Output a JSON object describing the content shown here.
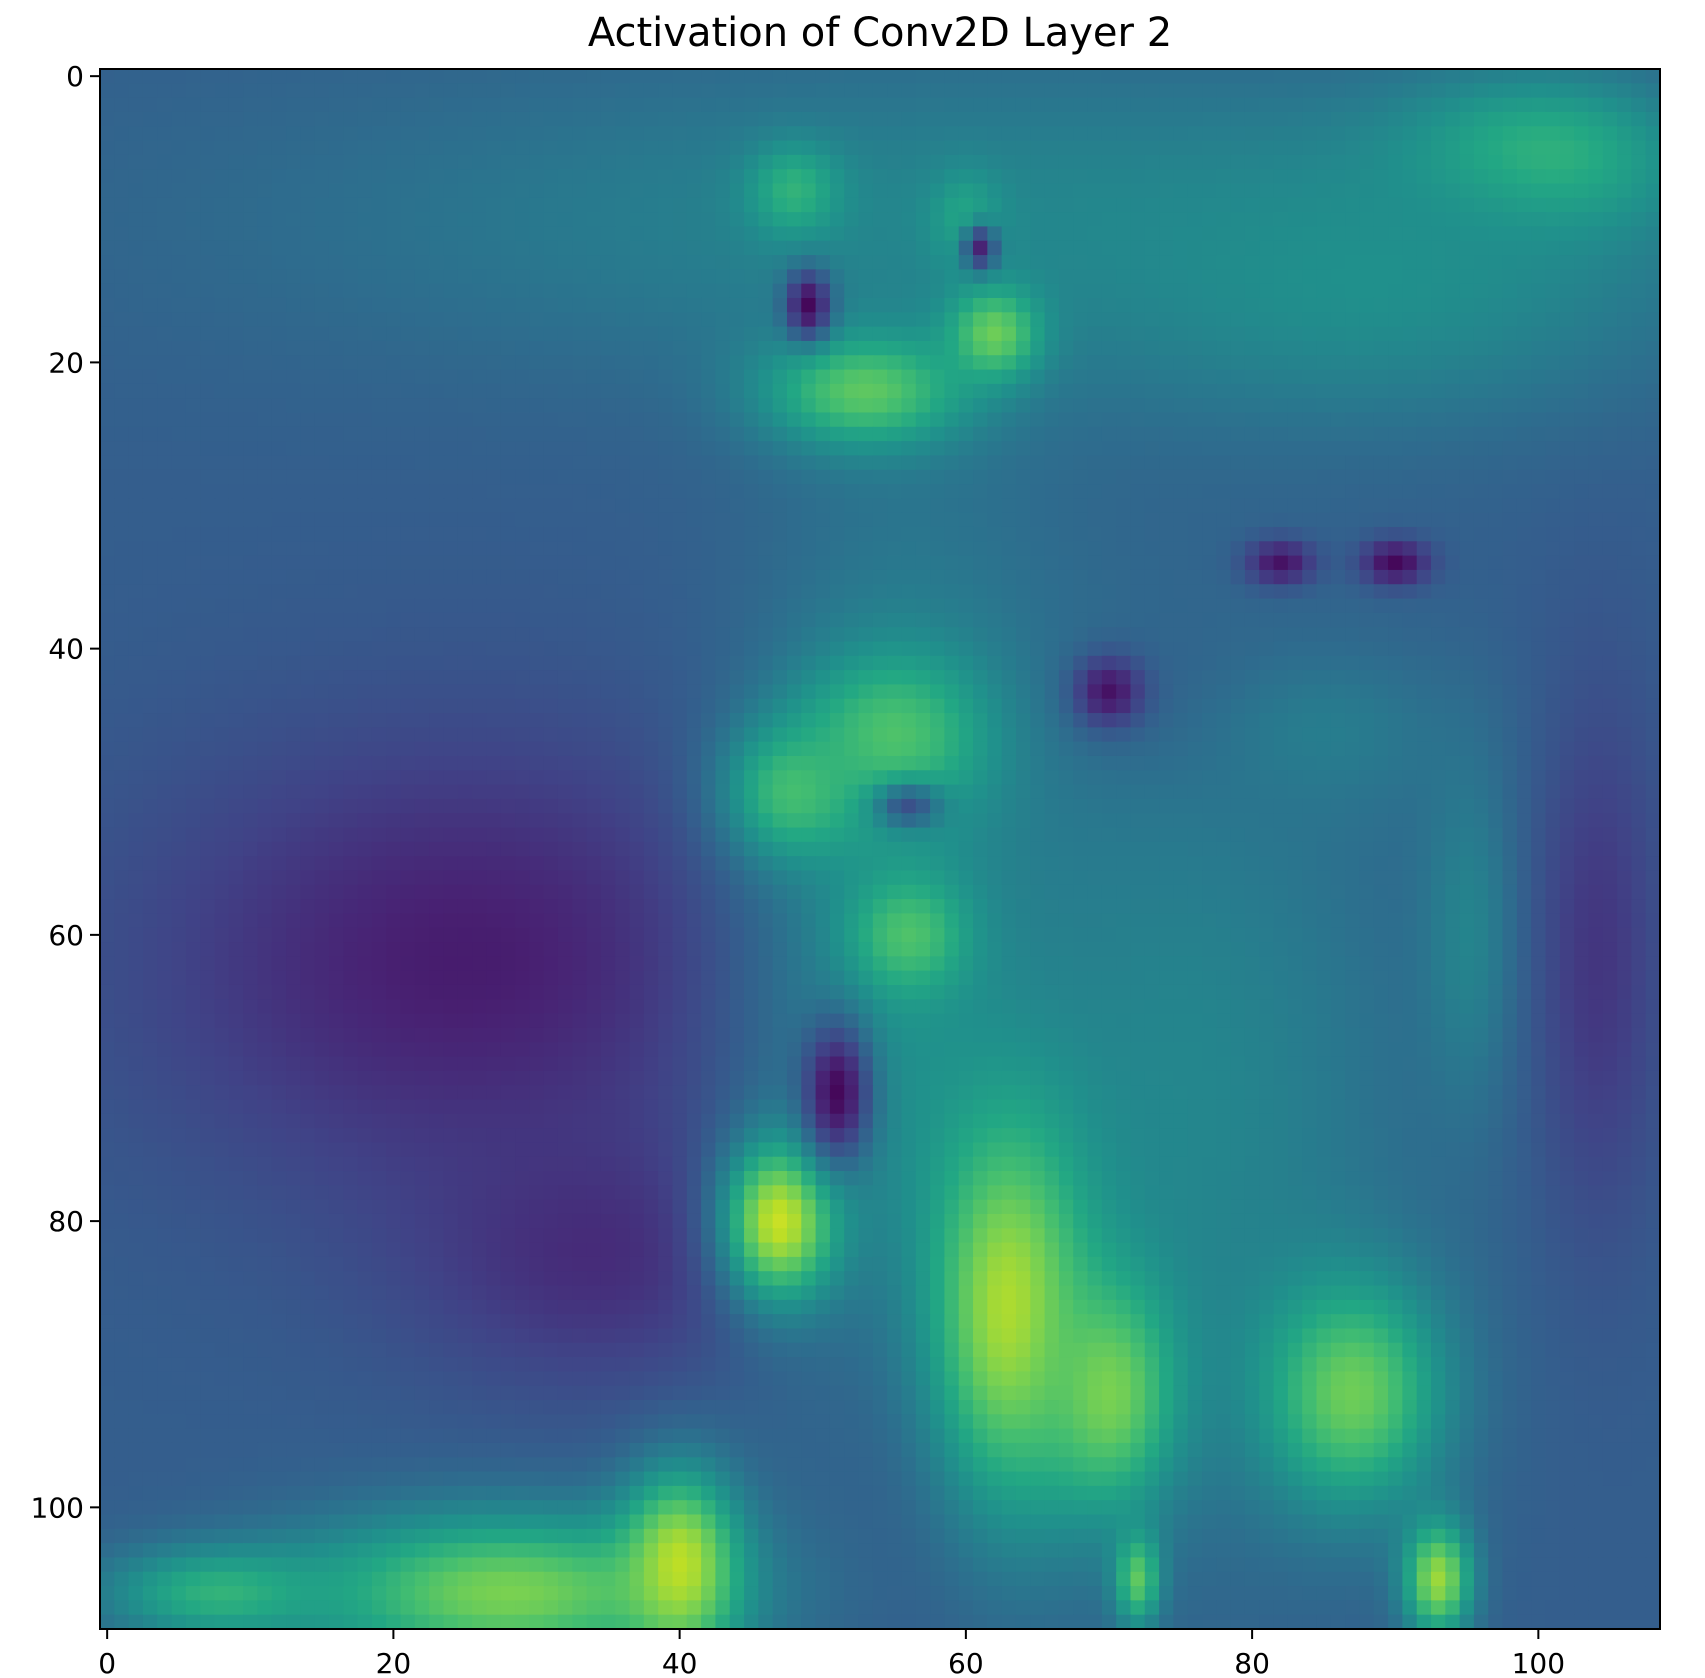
{
  "chart_data": {
    "type": "heatmap",
    "title": "Activation of Conv2D Layer 2",
    "xlabel": "",
    "ylabel": "",
    "colormap": "viridis",
    "grid": false,
    "legend": "none",
    "image_shape": [
      109,
      109
    ],
    "xlim": [
      -0.5,
      108.5
    ],
    "ylim": [
      108.5,
      -0.5
    ],
    "x_ticks": [
      0,
      20,
      40,
      60,
      80,
      100
    ],
    "y_ticks": [
      0,
      20,
      40,
      60,
      80,
      100
    ],
    "x_tick_labels": [
      "0",
      "20",
      "40",
      "60",
      "80",
      "100"
    ],
    "y_tick_labels": [
      "0",
      "20",
      "40",
      "60",
      "80",
      "100"
    ],
    "value_range": [
      0,
      1
    ],
    "background_value": 0.3,
    "features": [
      {
        "shape": "ellipse",
        "cx": 60,
        "cy": 10,
        "rx": 60,
        "ry": 14,
        "value": 0.45
      },
      {
        "shape": "ellipse",
        "cx": 100,
        "cy": 6,
        "rx": 12,
        "ry": 7,
        "value": 0.7
      },
      {
        "shape": "ellipse",
        "cx": 88,
        "cy": 14,
        "rx": 25,
        "ry": 12,
        "value": 0.5
      },
      {
        "shape": "ellipse",
        "cx": 25,
        "cy": 62,
        "rx": 28,
        "ry": 20,
        "value": 0.08
      },
      {
        "shape": "ellipse",
        "cx": 35,
        "cy": 82,
        "rx": 18,
        "ry": 12,
        "value": 0.12
      },
      {
        "shape": "ellipse",
        "cx": 104,
        "cy": 62,
        "rx": 6,
        "ry": 24,
        "value": 0.15
      },
      {
        "shape": "ellipse",
        "cx": 57,
        "cy": 80,
        "rx": 9,
        "ry": 30,
        "value": 0.12
      },
      {
        "shape": "ellipse",
        "cx": 75,
        "cy": 45,
        "rx": 16,
        "ry": 7,
        "value": 0.2
      },
      {
        "shape": "ellipse",
        "cx": 56,
        "cy": 62,
        "rx": 14,
        "ry": 42,
        "value": 0.5
      },
      {
        "shape": "ellipse",
        "cx": 75,
        "cy": 72,
        "rx": 20,
        "ry": 35,
        "value": 0.46
      },
      {
        "shape": "ellipse",
        "cx": 85,
        "cy": 46,
        "rx": 12,
        "ry": 8,
        "value": 0.42
      },
      {
        "shape": "ellipse",
        "cx": 95,
        "cy": 60,
        "rx": 4,
        "ry": 15,
        "value": 0.45
      },
      {
        "shape": "ellipse",
        "cx": 48,
        "cy": 8,
        "rx": 4,
        "ry": 4,
        "value": 0.65
      },
      {
        "shape": "ellipse",
        "cx": 60,
        "cy": 10,
        "rx": 3,
        "ry": 4,
        "value": 0.6
      },
      {
        "shape": "ellipse",
        "cx": 62,
        "cy": 18,
        "rx": 4,
        "ry": 4,
        "value": 0.78
      },
      {
        "shape": "ellipse",
        "cx": 53,
        "cy": 22,
        "rx": 9,
        "ry": 5,
        "value": 0.75
      },
      {
        "shape": "ellipse",
        "cx": 55,
        "cy": 46,
        "rx": 8,
        "ry": 7,
        "value": 0.72
      },
      {
        "shape": "ellipse",
        "cx": 48,
        "cy": 50,
        "rx": 6,
        "ry": 6,
        "value": 0.7
      },
      {
        "shape": "ellipse",
        "cx": 56,
        "cy": 60,
        "rx": 5,
        "ry": 5,
        "value": 0.72
      },
      {
        "shape": "ellipse",
        "cx": 47,
        "cy": 80,
        "rx": 5,
        "ry": 7,
        "value": 0.92
      },
      {
        "shape": "ellipse",
        "cx": 63,
        "cy": 86,
        "rx": 7,
        "ry": 17,
        "value": 0.88
      },
      {
        "shape": "ellipse",
        "cx": 70,
        "cy": 92,
        "rx": 6,
        "ry": 10,
        "value": 0.8
      },
      {
        "shape": "ellipse",
        "cx": 87,
        "cy": 92,
        "rx": 8,
        "ry": 10,
        "value": 0.78
      },
      {
        "shape": "ellipse",
        "cx": 28,
        "cy": 106,
        "rx": 18,
        "ry": 7,
        "value": 0.8
      },
      {
        "shape": "ellipse",
        "cx": 40,
        "cy": 104,
        "rx": 5,
        "ry": 8,
        "value": 0.9
      },
      {
        "shape": "ellipse",
        "cx": 8,
        "cy": 106,
        "rx": 10,
        "ry": 4,
        "value": 0.65
      },
      {
        "shape": "ellipse",
        "cx": 93,
        "cy": 105,
        "rx": 3,
        "ry": 5,
        "value": 0.85
      },
      {
        "shape": "ellipse",
        "cx": 72,
        "cy": 105,
        "rx": 2,
        "ry": 4,
        "value": 0.75
      },
      {
        "shape": "ellipse",
        "cx": 49,
        "cy": 16,
        "rx": 2,
        "ry": 3,
        "value": 0.02
      },
      {
        "shape": "ellipse",
        "cx": 61,
        "cy": 12,
        "rx": 1.5,
        "ry": 2,
        "value": 0.1
      },
      {
        "shape": "ellipse",
        "cx": 70,
        "cy": 43,
        "rx": 3,
        "ry": 3,
        "value": 0.05
      },
      {
        "shape": "ellipse",
        "cx": 90,
        "cy": 34,
        "rx": 3,
        "ry": 2,
        "value": 0.02
      },
      {
        "shape": "ellipse",
        "cx": 82,
        "cy": 34,
        "rx": 3,
        "ry": 2,
        "value": 0.05
      },
      {
        "shape": "ellipse",
        "cx": 51,
        "cy": 71,
        "rx": 3,
        "ry": 6,
        "value": 0.02
      },
      {
        "shape": "ellipse",
        "cx": 56,
        "cy": 51,
        "rx": 3,
        "ry": 2,
        "value": 0.25
      }
    ]
  }
}
